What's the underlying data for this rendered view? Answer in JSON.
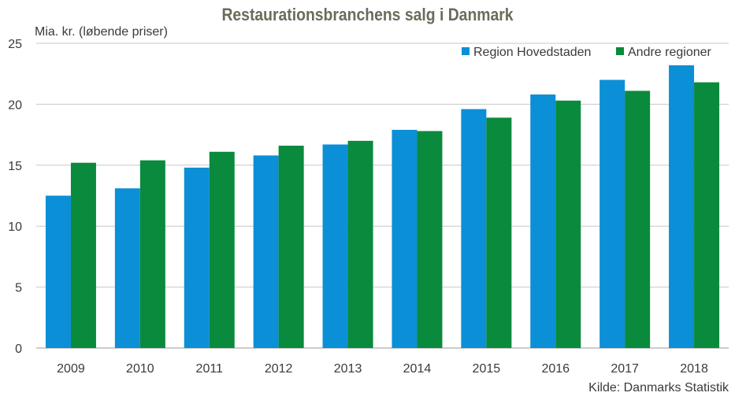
{
  "chart_data": {
    "type": "bar",
    "title": "Restaurationsbranchens salg i Danmark",
    "ylabel": "Mia. kr. (løbende priser)",
    "xlabel": "",
    "source": "Kilde: Danmarks Statistik",
    "categories": [
      "2009",
      "2010",
      "2011",
      "2012",
      "2013",
      "2014",
      "2015",
      "2016",
      "2017",
      "2018"
    ],
    "series": [
      {
        "name": "Region Hovedstaden",
        "color": "#0b8fd6",
        "values": [
          12.5,
          13.1,
          14.8,
          15.8,
          16.7,
          17.9,
          19.6,
          20.8,
          22.0,
          23.2
        ]
      },
      {
        "name": "Andre regioner",
        "color": "#0a8a3c",
        "values": [
          15.2,
          15.4,
          16.1,
          16.6,
          17.0,
          17.8,
          18.9,
          20.3,
          21.1,
          21.8
        ]
      }
    ],
    "ylim": [
      0,
      25
    ],
    "yticks": [
      0,
      5,
      10,
      15,
      20,
      25
    ],
    "grid": true,
    "legend": "top-right"
  }
}
